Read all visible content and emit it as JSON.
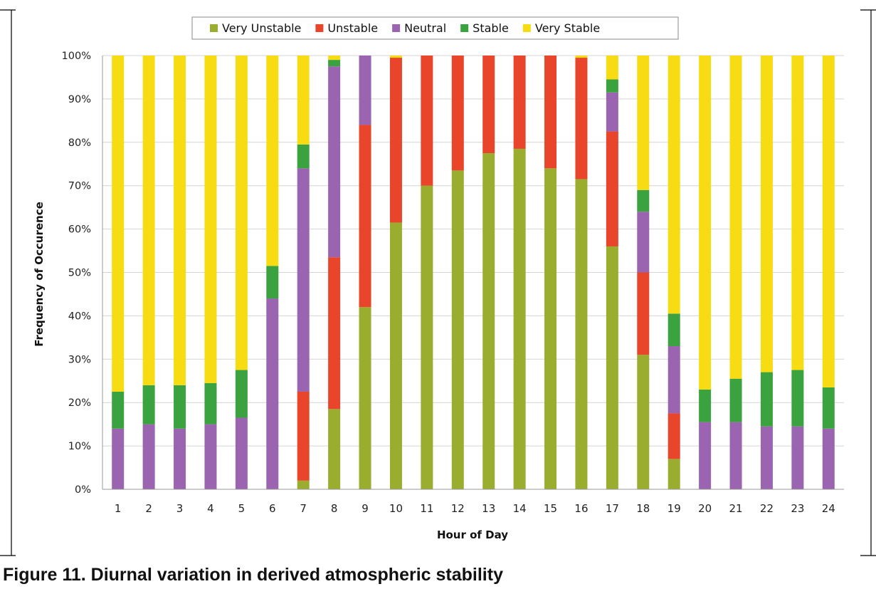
{
  "figure": {
    "caption": "Figure 11.  Diurnal variation in derived atmospheric stability"
  },
  "chart_data": {
    "type": "bar",
    "stacked": true,
    "xlabel": "Hour of Day",
    "ylabel": "Frequency of Occurence",
    "ylim": [
      0,
      100
    ],
    "y_ticks": [
      "0%",
      "10%",
      "20%",
      "30%",
      "40%",
      "50%",
      "60%",
      "70%",
      "80%",
      "90%",
      "100%"
    ],
    "grid": true,
    "legend_position": "top",
    "categories": [
      "1",
      "2",
      "3",
      "4",
      "5",
      "6",
      "7",
      "8",
      "9",
      "10",
      "11",
      "12",
      "13",
      "14",
      "15",
      "16",
      "17",
      "18",
      "19",
      "20",
      "21",
      "22",
      "23",
      "24"
    ],
    "series": [
      {
        "name": "Very Unstable",
        "color": "#9bad2f",
        "values": [
          0,
          0,
          0,
          0,
          0,
          0,
          2,
          18.5,
          42,
          61.5,
          70,
          73.5,
          77.5,
          78.5,
          74,
          71.5,
          56,
          31,
          7,
          0,
          0,
          0,
          0,
          0
        ]
      },
      {
        "name": "Unstable",
        "color": "#e8452a",
        "values": [
          0,
          0,
          0,
          0,
          0,
          0,
          20.5,
          35,
          42,
          38,
          30,
          26.5,
          22.5,
          21.5,
          26,
          28,
          26.5,
          19,
          10.5,
          0,
          0,
          0,
          0,
          0
        ]
      },
      {
        "name": "Neutral",
        "color": "#9a64b0",
        "values": [
          14,
          15,
          14,
          15,
          16.5,
          44,
          51.5,
          44,
          16,
          0,
          0,
          0,
          0,
          0,
          0,
          0,
          9,
          14,
          15.5,
          15.5,
          15.5,
          14.5,
          14.5,
          14
        ]
      },
      {
        "name": "Stable",
        "color": "#3aa23f",
        "values": [
          8.5,
          9,
          10,
          9.5,
          11,
          7.5,
          5.5,
          1.5,
          0,
          0,
          0,
          0,
          0,
          0,
          0,
          0,
          3,
          5,
          7.5,
          7.5,
          10,
          12.5,
          13,
          9.5
        ]
      },
      {
        "name": "Very Stable",
        "color": "#f7dc13",
        "values": [
          77.5,
          76,
          76,
          75.5,
          72.5,
          48.5,
          20.5,
          1,
          0,
          0.5,
          0,
          0,
          0,
          0,
          0,
          0.5,
          5.5,
          31,
          59.5,
          77,
          74.5,
          73,
          72.5,
          76.5
        ]
      }
    ]
  }
}
